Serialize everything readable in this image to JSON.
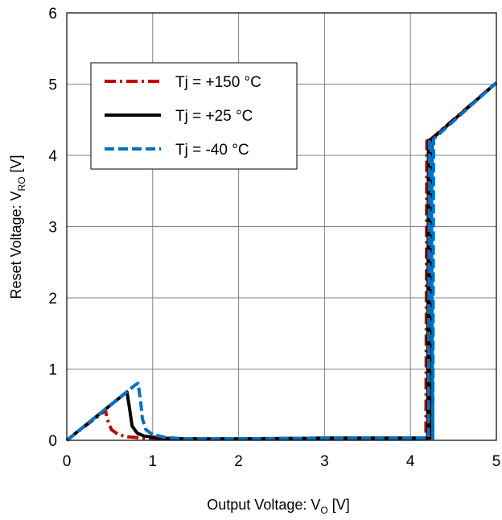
{
  "chart_data": {
    "type": "line",
    "xlabel": {
      "main": "Output Voltage: V",
      "sub": "O",
      "unit": " [V]"
    },
    "ylabel": {
      "main": "Reset Voltage: V",
      "sub": "RO",
      "unit": " [V]"
    },
    "xlim": [
      0,
      5
    ],
    "ylim": [
      0,
      6
    ],
    "x_ticks": [
      "0",
      "1",
      "2",
      "3",
      "4",
      "5"
    ],
    "y_ticks": [
      "0",
      "1",
      "2",
      "3",
      "4",
      "5",
      "6"
    ],
    "grid": true,
    "legend_position": "top-left",
    "series": [
      {
        "name": "Tj = +150 °C",
        "color": "#c00000",
        "style": "dash-dot",
        "points": [
          [
            0,
            0
          ],
          [
            0.45,
            0.42
          ],
          [
            0.47,
            0.3
          ],
          [
            0.52,
            0.15
          ],
          [
            0.6,
            0.08
          ],
          [
            0.7,
            0.05
          ],
          [
            0.9,
            0.03
          ],
          [
            1.2,
            0.02
          ],
          [
            2,
            0.02
          ],
          [
            3,
            0.03
          ],
          [
            4,
            0.03
          ],
          [
            4.18,
            0.03
          ],
          [
            4.19,
            4.2
          ],
          [
            4.22,
            4.22
          ],
          [
            4.22,
            0.03
          ],
          [
            4.24,
            4.23
          ],
          [
            5,
            5.02
          ]
        ]
      },
      {
        "name": "Tj = +25 °C",
        "color": "#000000",
        "style": "solid",
        "points": [
          [
            0,
            0
          ],
          [
            0.7,
            0.68
          ],
          [
            0.73,
            0.45
          ],
          [
            0.76,
            0.2
          ],
          [
            0.82,
            0.1
          ],
          [
            0.9,
            0.06
          ],
          [
            1.1,
            0.03
          ],
          [
            1.4,
            0.02
          ],
          [
            2,
            0.02
          ],
          [
            3,
            0.03
          ],
          [
            4,
            0.03
          ],
          [
            4.2,
            0.03
          ],
          [
            4.21,
            4.2
          ],
          [
            4.23,
            4.22
          ],
          [
            4.23,
            0.03
          ],
          [
            4.25,
            4.23
          ],
          [
            5,
            5.02
          ]
        ]
      },
      {
        "name": "Tj = -40 °C",
        "color": "#0070c0",
        "style": "dash",
        "points": [
          [
            0,
            0
          ],
          [
            0.8,
            0.78
          ],
          [
            0.83,
            0.8
          ],
          [
            0.86,
            0.55
          ],
          [
            0.88,
            0.3
          ],
          [
            0.92,
            0.15
          ],
          [
            1.0,
            0.08
          ],
          [
            1.15,
            0.04
          ],
          [
            1.4,
            0.02
          ],
          [
            2,
            0.02
          ],
          [
            3,
            0.03
          ],
          [
            4,
            0.03
          ],
          [
            4.21,
            0.03
          ],
          [
            4.22,
            4.19
          ],
          [
            4.24,
            4.22
          ],
          [
            4.26,
            0.03
          ],
          [
            4.27,
            4.23
          ],
          [
            5,
            5.02
          ]
        ]
      }
    ]
  }
}
